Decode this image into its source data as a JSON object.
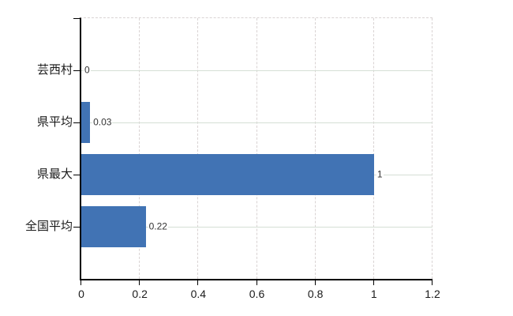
{
  "chart_data": {
    "type": "bar",
    "orientation": "horizontal",
    "title": "",
    "categories": [
      "芸西村",
      "県平均",
      "県最大",
      "全国平均"
    ],
    "values": [
      0,
      0.03,
      1,
      0.22
    ],
    "value_labels": [
      "0",
      "0.03",
      "1",
      "0.22"
    ],
    "x_tick_labels": [
      "0",
      "0.2",
      "0.4",
      "0.6",
      "0.8",
      "1",
      "1.2"
    ],
    "x_tick_values": [
      0,
      0.2,
      0.4,
      0.6,
      0.8,
      1,
      1.2
    ],
    "xlim": [
      0,
      1.2
    ],
    "grid": "on",
    "legend_position": "none",
    "colors": {
      "bar": "#4173b4",
      "axis": "#000000",
      "grid_vertical": "#d9d3d3",
      "grid_horizontal": "#d5dfd5",
      "value_label": "#333333",
      "tick_label": "#1a1a1a",
      "background": "#ffffff"
    }
  }
}
